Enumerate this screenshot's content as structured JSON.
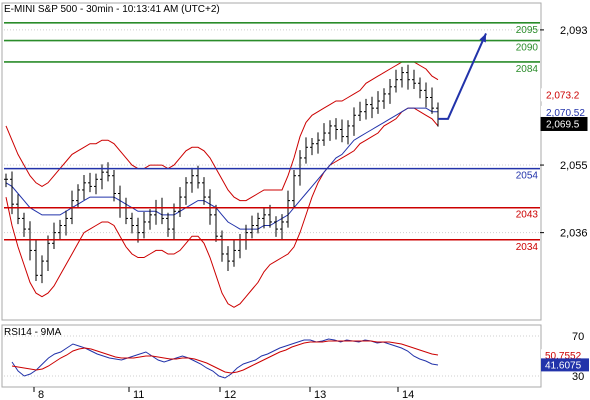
{
  "chart_data": [
    {
      "type": "line",
      "title": "E-MINI S&P 500 - 30min - 10:13:41 AM (UTC+2)",
      "xlabel": "",
      "ylabel": "",
      "ylim": [
        2012,
        2100
      ],
      "x_tick_labels": [
        "8",
        "11",
        "12",
        "13",
        "14"
      ],
      "y_tick_labels": [
        "2,093",
        "2,055",
        "2,036"
      ],
      "y_ticks": [
        2093,
        2055,
        2036
      ],
      "grid": "dotted horizontal",
      "horizontal_levels": [
        {
          "label": "2095",
          "value": 2095,
          "color": "#2a8c2a"
        },
        {
          "label": "2090",
          "value": 2090,
          "color": "#2a8c2a"
        },
        {
          "label": "2084",
          "value": 2084,
          "color": "#2a8c2a"
        },
        {
          "label": "2054",
          "value": 2054,
          "color": "#2233aa"
        },
        {
          "label": "2043",
          "value": 2043,
          "color": "#cc0000"
        },
        {
          "label": "2034",
          "value": 2034,
          "color": "#cc0000"
        }
      ],
      "price_tags": [
        {
          "label": "2,073.2",
          "value": 2073.2,
          "bg": "#ffffff",
          "fg": "#cc0000"
        },
        {
          "label": "2,070.52",
          "value": 2070.52,
          "bg": "#ffffff",
          "fg": "#2233aa"
        },
        {
          "label": "2,069.5",
          "value": 2069.5,
          "bg": "#000000",
          "fg": "#ffffff"
        }
      ],
      "series": [
        {
          "role": "price",
          "values": [
            2051,
            2044,
            2040,
            2037,
            2031,
            2024,
            2028,
            2033,
            2036,
            2038,
            2040,
            2045,
            2048,
            2050,
            2049,
            2051,
            2053,
            2052,
            2047,
            2043,
            2040,
            2038,
            2036,
            2039,
            2041,
            2043,
            2040,
            2037,
            2042,
            2046,
            2050,
            2052,
            2050,
            2046,
            2041,
            2035,
            2030,
            2028,
            2031,
            2034,
            2036,
            2038,
            2040,
            2041,
            2039,
            2037,
            2039,
            2045,
            2052,
            2057,
            2060,
            2061,
            2062,
            2064,
            2066,
            2065,
            2063,
            2066,
            2069,
            2070,
            2072,
            2071,
            2073,
            2075,
            2077,
            2079,
            2081,
            2079,
            2078,
            2076,
            2074,
            2071,
            2068
          ]
        },
        {
          "role": "upper-band",
          "color": "#cc0000",
          "values": [
            2066,
            2062,
            2058,
            2055,
            2052,
            2050,
            2049,
            2050,
            2052,
            2054,
            2056,
            2058,
            2059,
            2060,
            2061,
            2061,
            2062,
            2062,
            2061,
            2059,
            2057,
            2055,
            2054,
            2054,
            2055,
            2055,
            2055,
            2054,
            2055,
            2057,
            2059,
            2060,
            2060,
            2059,
            2057,
            2054,
            2051,
            2048,
            2046,
            2045,
            2045,
            2046,
            2047,
            2048,
            2048,
            2048,
            2048,
            2052,
            2057,
            2063,
            2067,
            2069,
            2070,
            2071,
            2072,
            2073,
            2073,
            2074,
            2075,
            2076,
            2078,
            2079,
            2080,
            2081,
            2082,
            2083,
            2084,
            2084,
            2084,
            2083,
            2082,
            2080,
            2079
          ]
        },
        {
          "role": "lower-band",
          "color": "#cc0000",
          "values": [
            2046,
            2038,
            2032,
            2027,
            2022,
            2019,
            2018,
            2019,
            2021,
            2024,
            2027,
            2030,
            2033,
            2036,
            2037,
            2038,
            2039,
            2039,
            2038,
            2035,
            2032,
            2030,
            2029,
            2029,
            2030,
            2031,
            2031,
            2030,
            2030,
            2031,
            2033,
            2035,
            2035,
            2033,
            2029,
            2024,
            2019,
            2016,
            2015,
            2016,
            2018,
            2020,
            2022,
            2025,
            2027,
            2028,
            2029,
            2030,
            2032,
            2036,
            2041,
            2046,
            2050,
            2053,
            2055,
            2056,
            2057,
            2058,
            2059,
            2061,
            2062,
            2063,
            2064,
            2066,
            2067,
            2068,
            2070,
            2071,
            2071,
            2070,
            2069,
            2068,
            2066
          ]
        },
        {
          "role": "moving-average",
          "color": "#2233aa",
          "values": [
            2050,
            2049,
            2047,
            2045,
            2043,
            2042,
            2041,
            2041,
            2041,
            2041,
            2042,
            2043,
            2044,
            2045,
            2046,
            2046,
            2046,
            2046,
            2046,
            2045,
            2044,
            2043,
            2042,
            2042,
            2042,
            2042,
            2041,
            2041,
            2041,
            2042,
            2043,
            2044,
            2045,
            2045,
            2044,
            2043,
            2041,
            2039,
            2038,
            2037,
            2037,
            2037,
            2037,
            2038,
            2038,
            2039,
            2040,
            2041,
            2043,
            2045,
            2047,
            2049,
            2051,
            2053,
            2055,
            2057,
            2058,
            2060,
            2062,
            2063,
            2064,
            2065,
            2066,
            2067,
            2068,
            2069,
            2070,
            2071,
            2071,
            2071,
            2071,
            2070,
            2070
          ]
        },
        {
          "role": "forecast-arrow",
          "color": "#2233aa",
          "values": [
            2068,
            2092
          ]
        }
      ]
    },
    {
      "type": "line",
      "title": "RSI14 - 9MA",
      "ylim": [
        20,
        80
      ],
      "y_tick_labels": [
        "70",
        "30"
      ],
      "y_ticks": [
        70,
        30
      ],
      "price_tags": [
        {
          "label": "50.7552",
          "value": 50.7552,
          "bg": "#ffffff",
          "fg": "#cc0000"
        },
        {
          "label": "41.6075",
          "value": 41.6075,
          "bg": "#2233aa",
          "fg": "#ffffff"
        }
      ],
      "series": [
        {
          "role": "rsi",
          "color": "#2233aa",
          "values": [
            44,
            35,
            30,
            32,
            36,
            42,
            48,
            52,
            54,
            58,
            62,
            60,
            58,
            55,
            52,
            50,
            48,
            47,
            46,
            48,
            50,
            52,
            54,
            50,
            46,
            44,
            46,
            48,
            50,
            48,
            45,
            42,
            38,
            35,
            30,
            28,
            32,
            38,
            42,
            44,
            46,
            50,
            52,
            55,
            58,
            60,
            62,
            64,
            66,
            66,
            64,
            65,
            67,
            66,
            64,
            66,
            65,
            64,
            66,
            65,
            63,
            64,
            62,
            60,
            58,
            55,
            50,
            47,
            45,
            42,
            41
          ]
        },
        {
          "role": "rsi-ma",
          "color": "#cc0000",
          "values": [
            40,
            39,
            38,
            37,
            36,
            37,
            40,
            44,
            48,
            51,
            55,
            57,
            58,
            57,
            55,
            53,
            51,
            49,
            48,
            48,
            48,
            49,
            50,
            50,
            49,
            48,
            47,
            47,
            48,
            48,
            47,
            45,
            43,
            40,
            37,
            34,
            33,
            34,
            36,
            39,
            42,
            45,
            48,
            51,
            54,
            56,
            59,
            61,
            63,
            64,
            64,
            64,
            65,
            65,
            65,
            65,
            65,
            65,
            65,
            65,
            64,
            64,
            64,
            63,
            62,
            60,
            58,
            56,
            54,
            52,
            51
          ]
        }
      ]
    }
  ]
}
